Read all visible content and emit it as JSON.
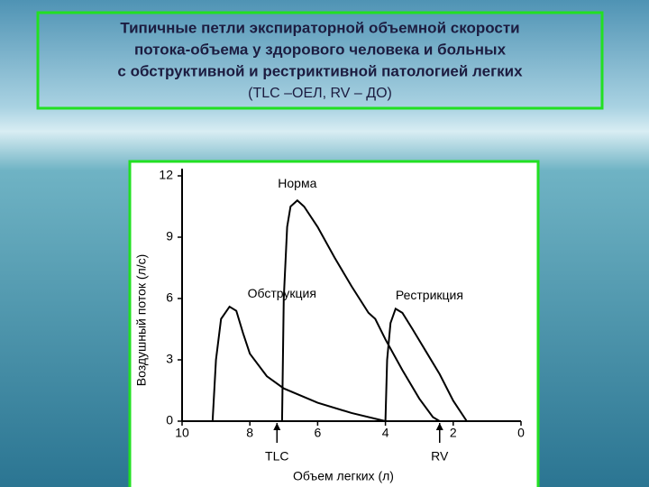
{
  "chart_data": {
    "type": "line",
    "title": [
      "Типичные петли экспираторной объемной скорости",
      "потока-объема у здорового человека и больных",
      "с обструктивной и рестриктивной патологией легких"
    ],
    "subtitle": "(TLC –ОЕЛ, RV – ДО)",
    "y_label": "Воздушный поток (л/с)",
    "x_label": "Объем легких (л)",
    "xlim": [
      10,
      0
    ],
    "xticks": [
      10,
      8,
      6,
      4,
      2,
      0
    ],
    "ylim": [
      0,
      12
    ],
    "yticks": [
      0,
      3,
      6,
      9,
      12
    ],
    "color": "#000000",
    "series": [
      {
        "name": "Обструкция",
        "x": [
          9.1,
          9.0,
          8.85,
          8.6,
          8.4,
          8.2,
          8.0,
          7.5,
          7.0,
          6.0,
          5.0,
          4.0
        ],
        "values": [
          0,
          3,
          5,
          5.6,
          5.4,
          4.3,
          3.3,
          2.2,
          1.6,
          0.9,
          0.4,
          0
        ]
      },
      {
        "name": "Норма",
        "x": [
          7.05,
          7.0,
          6.9,
          6.8,
          6.6,
          6.4,
          6.0,
          5.5,
          5.0,
          4.5,
          4.3,
          4.0,
          3.5,
          3.0,
          2.6,
          2.4
        ],
        "values": [
          0,
          6,
          9.5,
          10.5,
          10.8,
          10.5,
          9.5,
          8.0,
          6.6,
          5.3,
          5.0,
          4.0,
          2.5,
          1.1,
          0.2,
          0
        ]
      },
      {
        "name": "Рестрикция",
        "x": [
          4.0,
          3.95,
          3.85,
          3.7,
          3.5,
          3.2,
          2.8,
          2.4,
          2.0,
          1.6
        ],
        "values": [
          0,
          3,
          4.8,
          5.5,
          5.3,
          4.5,
          3.4,
          2.3,
          1.0,
          0
        ]
      }
    ],
    "annotations": [
      {
        "text": "TLC",
        "x": 7.2
      },
      {
        "text": "RV",
        "x": 2.4
      }
    ]
  }
}
